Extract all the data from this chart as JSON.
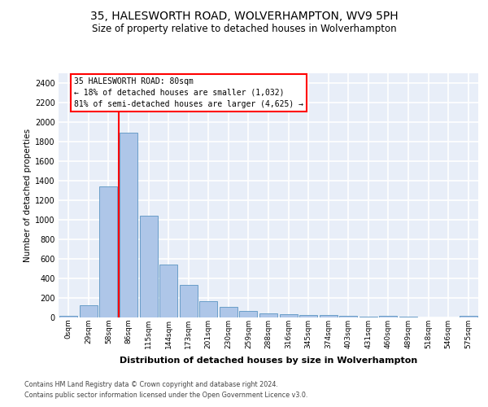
{
  "title": "35, HALESWORTH ROAD, WOLVERHAMPTON, WV9 5PH",
  "subtitle": "Size of property relative to detached houses in Wolverhampton",
  "xlabel": "Distribution of detached houses by size in Wolverhampton",
  "ylabel": "Number of detached properties",
  "bar_color": "#aec6e8",
  "bar_edgecolor": "#6a9ec8",
  "background_color": "#e8eef8",
  "grid_color": "#ffffff",
  "categories": [
    "0sqm",
    "29sqm",
    "58sqm",
    "86sqm",
    "115sqm",
    "144sqm",
    "173sqm",
    "201sqm",
    "230sqm",
    "259sqm",
    "288sqm",
    "316sqm",
    "345sqm",
    "374sqm",
    "403sqm",
    "431sqm",
    "460sqm",
    "489sqm",
    "518sqm",
    "546sqm",
    "575sqm"
  ],
  "values": [
    15,
    125,
    1340,
    1890,
    1045,
    545,
    335,
    165,
    110,
    65,
    42,
    30,
    25,
    22,
    15,
    5,
    18,
    5,
    3,
    1,
    18
  ],
  "ylim": [
    0,
    2500
  ],
  "yticks": [
    0,
    200,
    400,
    600,
    800,
    1000,
    1200,
    1400,
    1600,
    1800,
    2000,
    2200,
    2400
  ],
  "vline_x": 2.5,
  "annotation_line1": "35 HALESWORTH ROAD: 80sqm",
  "annotation_line2": "← 18% of detached houses are smaller (1,032)",
  "annotation_line3": "81% of semi-detached houses are larger (4,625) →",
  "footer1": "Contains HM Land Registry data © Crown copyright and database right 2024.",
  "footer2": "Contains public sector information licensed under the Open Government Licence v3.0."
}
